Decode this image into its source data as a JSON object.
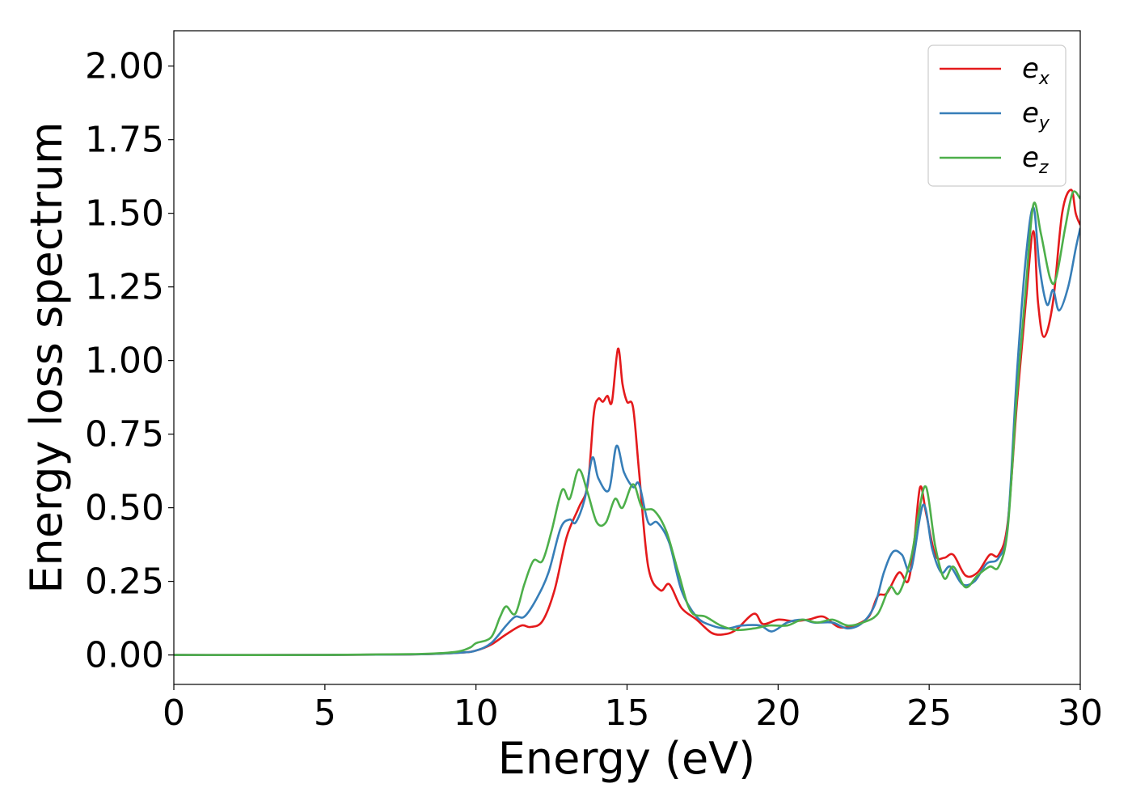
{
  "chart_data": {
    "type": "line",
    "xlabel": "Energy (eV)",
    "ylabel": "Energy loss spectrum",
    "xlim": [
      0,
      30
    ],
    "ylim": [
      -0.1,
      2.12
    ],
    "xticks": [
      "0",
      "5",
      "10",
      "15",
      "20",
      "25",
      "30"
    ],
    "yticks": [
      "0.00",
      "0.25",
      "0.50",
      "0.75",
      "1.00",
      "1.25",
      "1.50",
      "1.75",
      "2.00"
    ],
    "legend_position": "top-right",
    "series": [
      {
        "name": "e_x",
        "label_base": "e",
        "label_sub": "x",
        "color": "#e41a1c",
        "points": [
          [
            0,
            0
          ],
          [
            5,
            0
          ],
          [
            8,
            0.002
          ],
          [
            9.5,
            0.008
          ],
          [
            10,
            0.015
          ],
          [
            10.5,
            0.035
          ],
          [
            11,
            0.07
          ],
          [
            11.5,
            0.1
          ],
          [
            11.8,
            0.095
          ],
          [
            12.2,
            0.115
          ],
          [
            12.6,
            0.22
          ],
          [
            13,
            0.4
          ],
          [
            13.4,
            0.5
          ],
          [
            13.7,
            0.58
          ],
          [
            13.9,
            0.82
          ],
          [
            14.05,
            0.87
          ],
          [
            14.2,
            0.86
          ],
          [
            14.35,
            0.88
          ],
          [
            14.5,
            0.86
          ],
          [
            14.7,
            1.04
          ],
          [
            14.85,
            0.92
          ],
          [
            15.0,
            0.86
          ],
          [
            15.2,
            0.84
          ],
          [
            15.4,
            0.62
          ],
          [
            15.7,
            0.3
          ],
          [
            16.1,
            0.22
          ],
          [
            16.4,
            0.24
          ],
          [
            16.8,
            0.16
          ],
          [
            17.3,
            0.12
          ],
          [
            17.8,
            0.075
          ],
          [
            18.2,
            0.07
          ],
          [
            18.6,
            0.085
          ],
          [
            19.2,
            0.14
          ],
          [
            19.5,
            0.105
          ],
          [
            20,
            0.12
          ],
          [
            20.5,
            0.115
          ],
          [
            21,
            0.12
          ],
          [
            21.5,
            0.13
          ],
          [
            22,
            0.095
          ],
          [
            22.5,
            0.1
          ],
          [
            23,
            0.13
          ],
          [
            23.3,
            0.2
          ],
          [
            23.6,
            0.21
          ],
          [
            24,
            0.28
          ],
          [
            24.3,
            0.25
          ],
          [
            24.5,
            0.38
          ],
          [
            24.7,
            0.57
          ],
          [
            24.9,
            0.48
          ],
          [
            25.2,
            0.34
          ],
          [
            25.5,
            0.33
          ],
          [
            25.8,
            0.34
          ],
          [
            26.2,
            0.27
          ],
          [
            26.6,
            0.28
          ],
          [
            27,
            0.34
          ],
          [
            27.3,
            0.34
          ],
          [
            27.6,
            0.45
          ],
          [
            27.9,
            0.85
          ],
          [
            28.2,
            1.2
          ],
          [
            28.45,
            1.44
          ],
          [
            28.6,
            1.2
          ],
          [
            28.8,
            1.08
          ],
          [
            29.1,
            1.2
          ],
          [
            29.4,
            1.5
          ],
          [
            29.7,
            1.58
          ],
          [
            29.85,
            1.5
          ],
          [
            30,
            1.46
          ]
        ]
      },
      {
        "name": "e_y",
        "label_base": "e",
        "label_sub": "y",
        "color": "#377eb8",
        "points": [
          [
            0,
            0
          ],
          [
            5,
            0
          ],
          [
            8,
            0.002
          ],
          [
            9.5,
            0.008
          ],
          [
            10,
            0.015
          ],
          [
            10.5,
            0.04
          ],
          [
            11,
            0.1
          ],
          [
            11.3,
            0.13
          ],
          [
            11.6,
            0.13
          ],
          [
            12,
            0.19
          ],
          [
            12.4,
            0.28
          ],
          [
            12.8,
            0.43
          ],
          [
            13.1,
            0.46
          ],
          [
            13.3,
            0.45
          ],
          [
            13.6,
            0.53
          ],
          [
            13.85,
            0.67
          ],
          [
            14.05,
            0.6
          ],
          [
            14.4,
            0.56
          ],
          [
            14.65,
            0.71
          ],
          [
            14.9,
            0.62
          ],
          [
            15.2,
            0.57
          ],
          [
            15.4,
            0.58
          ],
          [
            15.7,
            0.45
          ],
          [
            16,
            0.45
          ],
          [
            16.4,
            0.38
          ],
          [
            16.8,
            0.22
          ],
          [
            17.3,
            0.13
          ],
          [
            17.8,
            0.1
          ],
          [
            18.3,
            0.09
          ],
          [
            18.8,
            0.1
          ],
          [
            19.4,
            0.1
          ],
          [
            19.8,
            0.08
          ],
          [
            20.3,
            0.11
          ],
          [
            20.8,
            0.12
          ],
          [
            21.2,
            0.11
          ],
          [
            21.8,
            0.11
          ],
          [
            22.3,
            0.09
          ],
          [
            22.8,
            0.11
          ],
          [
            23.2,
            0.17
          ],
          [
            23.5,
            0.28
          ],
          [
            23.8,
            0.35
          ],
          [
            24.1,
            0.34
          ],
          [
            24.4,
            0.29
          ],
          [
            24.8,
            0.51
          ],
          [
            25.1,
            0.36
          ],
          [
            25.4,
            0.28
          ],
          [
            25.7,
            0.3
          ],
          [
            26.1,
            0.24
          ],
          [
            26.5,
            0.25
          ],
          [
            26.9,
            0.31
          ],
          [
            27.3,
            0.33
          ],
          [
            27.6,
            0.44
          ],
          [
            27.9,
            0.95
          ],
          [
            28.2,
            1.35
          ],
          [
            28.45,
            1.52
          ],
          [
            28.65,
            1.32
          ],
          [
            28.9,
            1.19
          ],
          [
            29.1,
            1.24
          ],
          [
            29.3,
            1.17
          ],
          [
            29.6,
            1.25
          ],
          [
            29.85,
            1.38
          ],
          [
            30,
            1.45
          ]
        ]
      },
      {
        "name": "e_z",
        "label_base": "e",
        "label_sub": "z",
        "color": "#4daf4a",
        "points": [
          [
            0,
            0
          ],
          [
            5,
            0
          ],
          [
            8,
            0.003
          ],
          [
            9.3,
            0.01
          ],
          [
            9.8,
            0.025
          ],
          [
            10,
            0.04
          ],
          [
            10.5,
            0.06
          ],
          [
            10.8,
            0.13
          ],
          [
            11,
            0.165
          ],
          [
            11.3,
            0.14
          ],
          [
            11.6,
            0.24
          ],
          [
            11.9,
            0.32
          ],
          [
            12.2,
            0.32
          ],
          [
            12.5,
            0.42
          ],
          [
            12.85,
            0.56
          ],
          [
            13.1,
            0.53
          ],
          [
            13.4,
            0.63
          ],
          [
            13.7,
            0.55
          ],
          [
            14.0,
            0.45
          ],
          [
            14.3,
            0.45
          ],
          [
            14.6,
            0.53
          ],
          [
            14.85,
            0.5
          ],
          [
            15.2,
            0.58
          ],
          [
            15.5,
            0.5
          ],
          [
            15.9,
            0.49
          ],
          [
            16.3,
            0.42
          ],
          [
            16.7,
            0.28
          ],
          [
            17.1,
            0.15
          ],
          [
            17.6,
            0.13
          ],
          [
            18.1,
            0.1
          ],
          [
            18.6,
            0.085
          ],
          [
            19.2,
            0.09
          ],
          [
            19.7,
            0.1
          ],
          [
            20.3,
            0.1
          ],
          [
            20.8,
            0.12
          ],
          [
            21.3,
            0.11
          ],
          [
            21.8,
            0.12
          ],
          [
            22.3,
            0.1
          ],
          [
            22.8,
            0.11
          ],
          [
            23.3,
            0.14
          ],
          [
            23.7,
            0.23
          ],
          [
            24.0,
            0.21
          ],
          [
            24.4,
            0.33
          ],
          [
            24.65,
            0.48
          ],
          [
            24.9,
            0.57
          ],
          [
            25.2,
            0.37
          ],
          [
            25.5,
            0.26
          ],
          [
            25.8,
            0.3
          ],
          [
            26.2,
            0.23
          ],
          [
            26.6,
            0.27
          ],
          [
            27,
            0.3
          ],
          [
            27.3,
            0.3
          ],
          [
            27.6,
            0.43
          ],
          [
            27.9,
            0.88
          ],
          [
            28.2,
            1.25
          ],
          [
            28.45,
            1.53
          ],
          [
            28.7,
            1.43
          ],
          [
            29.0,
            1.28
          ],
          [
            29.2,
            1.28
          ],
          [
            29.5,
            1.45
          ],
          [
            29.75,
            1.57
          ],
          [
            30,
            1.55
          ]
        ]
      }
    ]
  }
}
